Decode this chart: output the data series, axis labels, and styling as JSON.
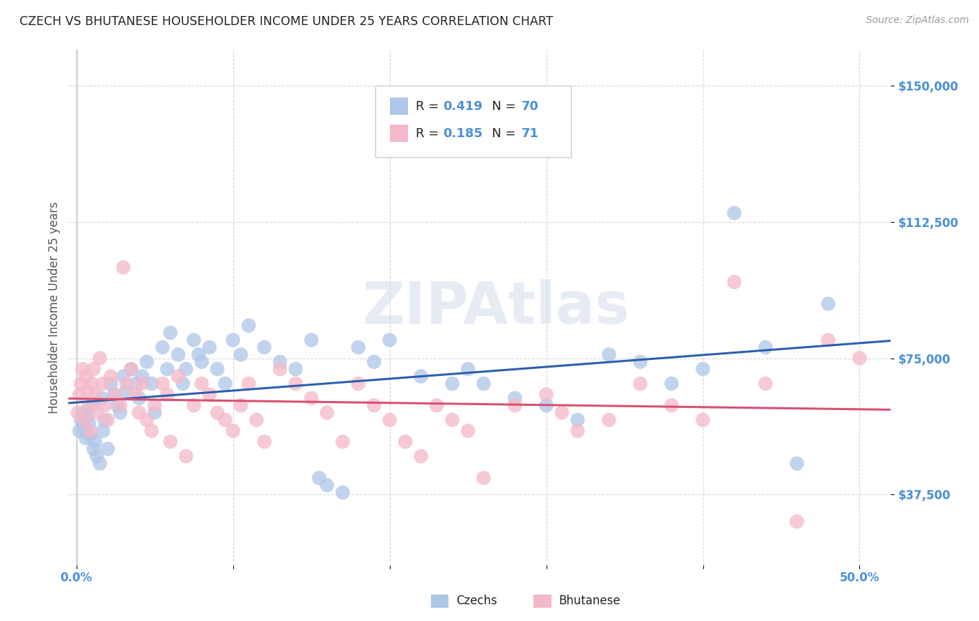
{
  "title": "CZECH VS BHUTANESE HOUSEHOLDER INCOME UNDER 25 YEARS CORRELATION CHART",
  "source": "Source: ZipAtlas.com",
  "ylabel": "Householder Income Under 25 years",
  "xlim": [
    -0.005,
    0.52
  ],
  "ylim": [
    18000,
    160000
  ],
  "xtick_positions": [
    0.0,
    0.5
  ],
  "xticklabels": [
    "0.0%",
    "50.0%"
  ],
  "ytick_positions": [
    37500,
    75000,
    112500,
    150000
  ],
  "yticklabels": [
    "$37,500",
    "$75,000",
    "$112,500",
    "$150,000"
  ],
  "blue_color": "#aec6e8",
  "pink_color": "#f5b8c8",
  "blue_line_color": "#2b5fad",
  "pink_line_color": "#d94f72",
  "blue_R": 0.419,
  "blue_N": 70,
  "pink_R": 0.185,
  "pink_N": 71,
  "legend_label_czech": "Czechs",
  "legend_label_bhutanese": "Bhutanese",
  "grid_color": "#cccccc",
  "background_color": "#ffffff",
  "title_color": "#222222",
  "tick_label_color": "#4a90d9",
  "watermark": "ZIPAtlas",
  "czechs_x": [
    0.002,
    0.003,
    0.004,
    0.005,
    0.006,
    0.007,
    0.008,
    0.009,
    0.01,
    0.011,
    0.012,
    0.013,
    0.015,
    0.016,
    0.017,
    0.018,
    0.02,
    0.022,
    0.024,
    0.026,
    0.028,
    0.03,
    0.032,
    0.035,
    0.038,
    0.04,
    0.042,
    0.045,
    0.048,
    0.05,
    0.055,
    0.058,
    0.06,
    0.065,
    0.068,
    0.07,
    0.075,
    0.078,
    0.08,
    0.085,
    0.09,
    0.095,
    0.1,
    0.105,
    0.11,
    0.12,
    0.13,
    0.14,
    0.15,
    0.155,
    0.16,
    0.17,
    0.18,
    0.19,
    0.2,
    0.22,
    0.24,
    0.25,
    0.26,
    0.28,
    0.3,
    0.32,
    0.34,
    0.36,
    0.38,
    0.4,
    0.42,
    0.44,
    0.46,
    0.48
  ],
  "czechs_y": [
    55000,
    58000,
    60000,
    56000,
    53000,
    59000,
    57000,
    54000,
    62000,
    50000,
    52000,
    48000,
    46000,
    64000,
    55000,
    58000,
    50000,
    68000,
    65000,
    62000,
    60000,
    70000,
    66000,
    72000,
    68000,
    64000,
    70000,
    74000,
    68000,
    60000,
    78000,
    72000,
    82000,
    76000,
    68000,
    72000,
    80000,
    76000,
    74000,
    78000,
    72000,
    68000,
    80000,
    76000,
    84000,
    78000,
    74000,
    72000,
    80000,
    42000,
    40000,
    38000,
    78000,
    74000,
    80000,
    70000,
    68000,
    72000,
    68000,
    64000,
    62000,
    58000,
    76000,
    74000,
    68000,
    72000,
    115000,
    78000,
    46000,
    90000
  ],
  "bhutanese_x": [
    0.001,
    0.002,
    0.003,
    0.004,
    0.005,
    0.006,
    0.007,
    0.008,
    0.009,
    0.01,
    0.011,
    0.012,
    0.013,
    0.015,
    0.017,
    0.018,
    0.02,
    0.022,
    0.025,
    0.028,
    0.03,
    0.032,
    0.035,
    0.038,
    0.04,
    0.042,
    0.045,
    0.048,
    0.05,
    0.055,
    0.058,
    0.06,
    0.065,
    0.07,
    0.075,
    0.08,
    0.085,
    0.09,
    0.095,
    0.1,
    0.105,
    0.11,
    0.115,
    0.12,
    0.13,
    0.14,
    0.15,
    0.16,
    0.17,
    0.18,
    0.19,
    0.2,
    0.21,
    0.22,
    0.23,
    0.24,
    0.25,
    0.26,
    0.28,
    0.3,
    0.31,
    0.32,
    0.34,
    0.36,
    0.38,
    0.4,
    0.42,
    0.44,
    0.46,
    0.48,
    0.5
  ],
  "bhutanese_y": [
    60000,
    65000,
    68000,
    72000,
    58000,
    70000,
    66000,
    62000,
    55000,
    68000,
    72000,
    65000,
    60000,
    75000,
    68000,
    62000,
    58000,
    70000,
    65000,
    62000,
    100000,
    68000,
    72000,
    65000,
    60000,
    68000,
    58000,
    55000,
    62000,
    68000,
    65000,
    52000,
    70000,
    48000,
    62000,
    68000,
    65000,
    60000,
    58000,
    55000,
    62000,
    68000,
    58000,
    52000,
    72000,
    68000,
    64000,
    60000,
    52000,
    68000,
    62000,
    58000,
    52000,
    48000,
    62000,
    58000,
    55000,
    42000,
    62000,
    65000,
    60000,
    55000,
    58000,
    68000,
    62000,
    58000,
    96000,
    68000,
    30000,
    80000,
    75000
  ]
}
